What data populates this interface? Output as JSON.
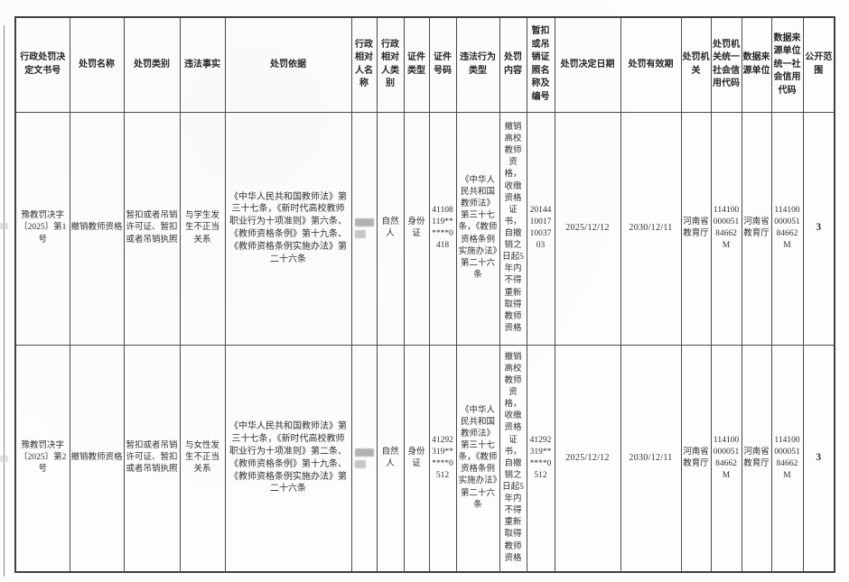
{
  "table": {
    "headers": [
      {
        "id": "doc_no",
        "label": "行政处罚决定文书号"
      },
      {
        "id": "penalty_name",
        "label": "处罚名称"
      },
      {
        "id": "penalty_category",
        "label": "处罚类别"
      },
      {
        "id": "illegal_fact",
        "label": "违法事实"
      },
      {
        "id": "penalty_basis",
        "label": "处罚依据"
      },
      {
        "id": "party_name",
        "label": "行政相对人名称"
      },
      {
        "id": "party_type",
        "label": "行政相对人类别"
      },
      {
        "id": "id_type",
        "label": "证件类型"
      },
      {
        "id": "id_number",
        "label": "证件号码"
      },
      {
        "id": "violation_type",
        "label": "违法行为类型"
      },
      {
        "id": "penalty_content",
        "label": "处罚内容"
      },
      {
        "id": "license_no",
        "label": "暂扣或吊销证照名称及编号"
      },
      {
        "id": "decision_date",
        "label": "处罚决定日期"
      },
      {
        "id": "valid_until",
        "label": "处罚有效期"
      },
      {
        "id": "authority",
        "label": "处罚机关"
      },
      {
        "id": "authority_credit_code",
        "label": "处罚机关统一社会信用代码"
      },
      {
        "id": "source_unit",
        "label": "数据来源单位"
      },
      {
        "id": "source_credit_code",
        "label": "数据来源单位统一社会信用代码"
      },
      {
        "id": "public_scope",
        "label": "公开范围"
      }
    ],
    "rows": [
      {
        "doc_no": "豫教罚决字〔2025〕第1号",
        "penalty_name": "撤销教师资格",
        "penalty_category": "暂扣或者吊销许可证、暂扣或者吊销执照",
        "illegal_fact": "与学生发生不正当关系",
        "penalty_basis": "《中华人民共和国教师法》第三十七条，《新时代高校教师职业行为十项准则》第六条、《教师资格条例》第十九条、《教师资格条例实施办法》第二十六条",
        "party_name": "",
        "party_name_redacted": true,
        "party_type": "自然人",
        "id_type": "身份证",
        "id_number": "41108119******0418",
        "violation_type": "《中华人民共和国教师法》第三十七条，《教师资格条例实施办法》第二十六条",
        "penalty_content": "撤销高校教师资格，收缴资格证书，自撤销之日起5年内不得重新取得教师资格",
        "license_no": "20144100171003703",
        "decision_date": "2025/12/12",
        "valid_until": "2030/12/11",
        "authority": "河南省教育厅",
        "authority_credit_code": "11410000005184662M",
        "source_unit": "河南省教育厅",
        "source_credit_code": "11410000005184662M",
        "public_scope": "3"
      },
      {
        "doc_no": "豫教罚决字〔2025〕第2号",
        "penalty_name": "撤销教师资格",
        "penalty_category": "暂扣或者吊销许可证、暂扣或者吊销执照",
        "illegal_fact": "与女性发生不正当关系",
        "penalty_basis": "《中华人民共和国教师法》第三十七条，《新时代高校教师职业行为十项准则》第二条、《教师资格条例》第十九条、《教师资格条例实施办法》第二十六条",
        "party_name": "",
        "party_name_redacted": true,
        "party_type": "自然人",
        "id_type": "身份证",
        "id_number": "41292319******0512",
        "violation_type": "《中华人民共和国教师法》第三十七条，《教师资格条例实施办法》第二十六条",
        "penalty_content": "撤销高校教师资格，收缴资格证书，自撤销之日起5年内不得重新取得教师资格",
        "license_no": "41292319******0512",
        "decision_date": "2025/12/12",
        "valid_until": "2030/12/11",
        "authority": "河南省教育厅",
        "authority_credit_code": "11410000005184662M",
        "source_unit": "河南省教育厅",
        "source_credit_code": "11410000005184662M",
        "public_scope": "3"
      }
    ]
  }
}
